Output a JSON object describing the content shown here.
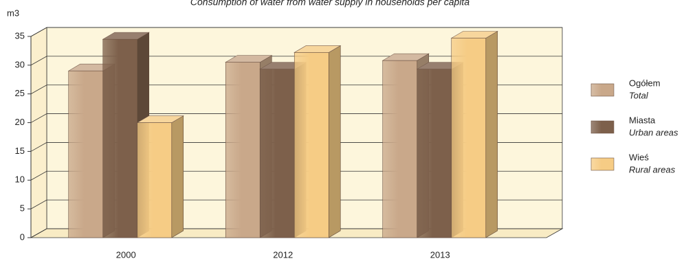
{
  "chart_data": {
    "type": "bar3d",
    "title": "Consumption of water from water supply in households per capita",
    "y_label": "m3",
    "categories": [
      "2000",
      "2012",
      "2013"
    ],
    "series": [
      {
        "name": "Ogółem",
        "name_en": "Total",
        "color": "#c9a88a",
        "values": [
          29,
          30.5,
          30.8
        ]
      },
      {
        "name": "Miasta",
        "name_en": "Urban areas",
        "color": "#7d604b",
        "values": [
          34.5,
          29.3,
          29.3
        ]
      },
      {
        "name": "Wieś",
        "name_en": "Rural areas",
        "color": "#f6cc85",
        "values": [
          20,
          32.2,
          34.7
        ]
      }
    ],
    "ylim": [
      0,
      35
    ],
    "yticks": [
      0,
      5,
      10,
      15,
      20,
      25,
      30,
      35
    ],
    "grid": true,
    "legend": "right"
  }
}
